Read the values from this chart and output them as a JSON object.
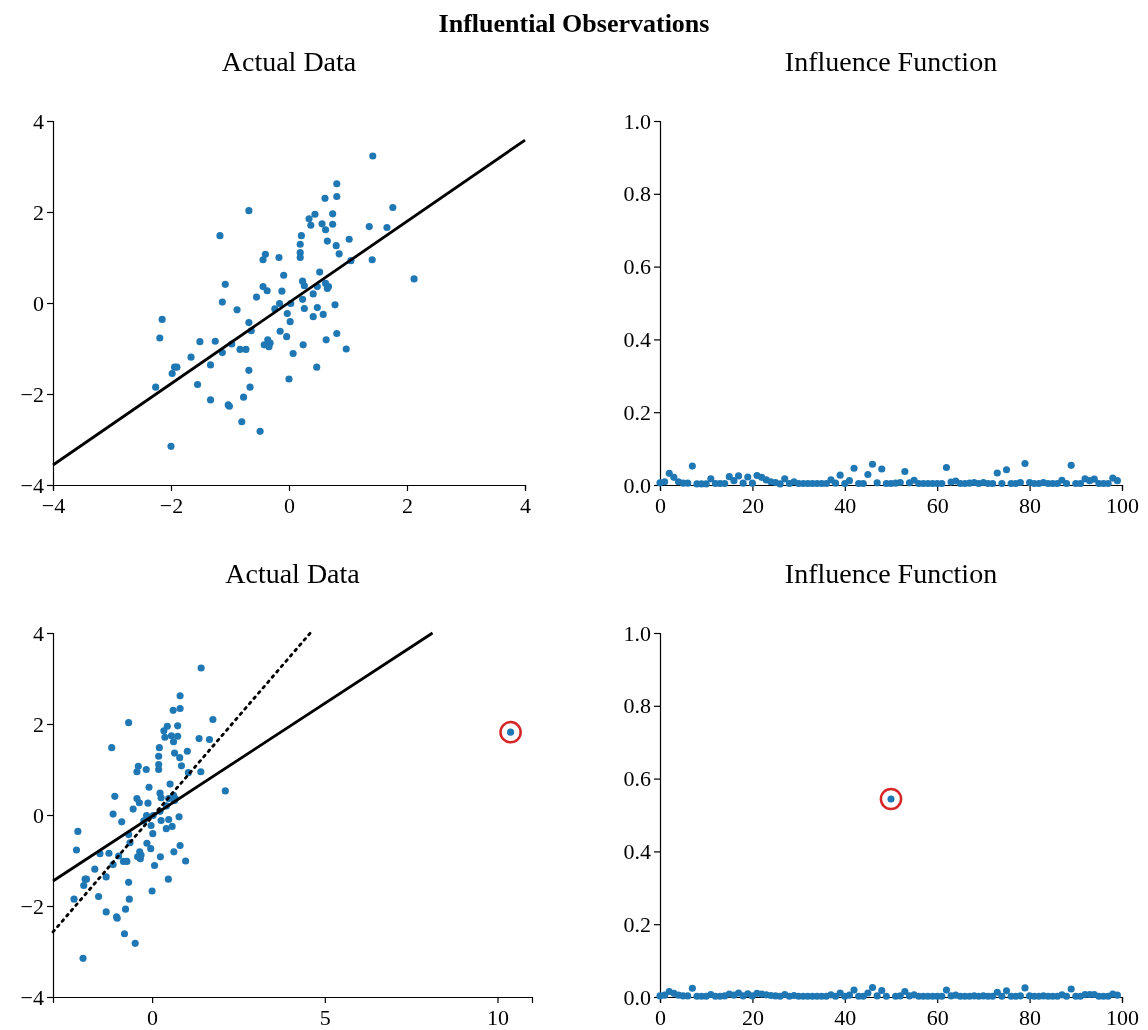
{
  "chart_data": [
    {
      "type": "scatter",
      "title": "Influential Observations",
      "subtitle": "Actual Data",
      "marker": "circle",
      "grid": false,
      "xlim": [
        -4,
        4
      ],
      "xticks": [
        {
          "value": -4,
          "label": "−4"
        },
        {
          "value": -2,
          "label": "−2"
        },
        0,
        2,
        4
      ],
      "ylim": [
        -4,
        4
      ],
      "yticks": [
        {
          "value": -4,
          "label": "−4"
        },
        {
          "value": -2,
          "label": "−2"
        },
        0,
        2,
        4
      ],
      "series": [
        {
          "color": "#1f77b4",
          "x": [
            1.42,
            0.81,
            0.61,
            0.81,
            -0.68,
            1.76,
            0.44,
            0.34,
            0.74,
            0.56,
            0.74,
            0.37,
            0.62,
            1.36,
            1.66,
            -1.17,
            0.21,
            1.02,
            0.65,
            0.19,
            0.8,
            0.85,
            -0.4,
            -0.44,
            0.19,
            0.19,
            -0.17,
            1.05,
            1.41,
            2.12,
            -0.09,
            0.52,
            -1.08,
            -0.44,
            -0.37,
            -0.12,
            0.23,
            0.26,
            0.48,
            0.62,
            0.67,
            0.65,
            0.41,
            -0.55,
            -1.13,
            0.23,
            0.03,
            -0.16,
            -0.88,
            -0.24,
            0.26,
            0.48,
            0.78,
            -0.03,
            0.41,
            0.58,
            0.02,
            -0.68,
            -2.15,
            -0.64,
            -0.15,
            -0.04,
            -2.19,
            -1.51,
            -1.25,
            -0.97,
            -0.36,
            -0.32,
            -0.42,
            -0.34,
            -0.83,
            -0.73,
            -1.13,
            0.24,
            0.63,
            0.81,
            0.97,
            0.07,
            -1.66,
            -1.33,
            -1.94,
            -1.9,
            -1.98,
            -0.68,
            0.47,
            -2.26,
            -1.55,
            -0.66,
            0.0,
            -0.77,
            -1.33,
            -1.03,
            -1.01,
            -0.8,
            -0.49,
            -2.0
          ],
          "values": [
            3.23,
            2.62,
            2.3,
            2.34,
            2.03,
            2.1,
            1.95,
            1.85,
            1.96,
            1.74,
            1.73,
            1.71,
            1.61,
            1.68,
            1.66,
            1.48,
            1.48,
            1.4,
            1.36,
            1.29,
            1.26,
            1.08,
            1.07,
            0.95,
            1.11,
            1.0,
            1.0,
            0.93,
            0.95,
            0.53,
            0.61,
            0.68,
            0.41,
            0.36,
            0.27,
            0.26,
            0.48,
            0.38,
            0.36,
            0.43,
            0.36,
            0.32,
            0.2,
            0.13,
            0.02,
            0.08,
            -0.01,
            -0.01,
            -0.15,
            -0.13,
            -0.12,
            -0.1,
            -0.04,
            -0.23,
            -0.3,
            -0.25,
            -0.41,
            -0.43,
            -0.36,
            -0.61,
            -0.62,
            -0.74,
            -0.77,
            -0.85,
            -0.84,
            -0.9,
            -0.81,
            -0.88,
            -0.92,
            -0.96,
            -1.02,
            -1.02,
            -1.09,
            -0.92,
            -0.81,
            -0.67,
            -1.01,
            -1.11,
            -1.19,
            -1.36,
            -1.41,
            -1.41,
            -1.55,
            -1.48,
            -1.41,
            -1.85,
            -1.79,
            -1.85,
            -1.67,
            -2.07,
            -2.13,
            -2.24,
            -2.27,
            -2.61,
            -2.82,
            -3.15
          ]
        },
        {
          "type": "line",
          "color": "#000000",
          "line_style": "solid",
          "marker": "none",
          "x": [
            -4,
            4
          ],
          "values": [
            -3.56,
            3.58
          ]
        }
      ]
    },
    {
      "type": "scatter",
      "subtitle": "Influence Function",
      "marker": "circle",
      "grid": false,
      "xlim": [
        0,
        100
      ],
      "xticks": [
        0,
        20,
        40,
        60,
        80,
        100
      ],
      "ylim": [
        0,
        1
      ],
      "yticks": [
        {
          "value": 0,
          "label": "0.0"
        },
        {
          "value": 0.2,
          "label": "0.2"
        },
        {
          "value": 0.4,
          "label": "0.4"
        },
        {
          "value": 0.6,
          "label": "0.6"
        },
        {
          "value": 0.8,
          "label": "0.8"
        },
        {
          "value": 1,
          "label": "1.0"
        }
      ],
      "series": [
        {
          "color": "#1f77b4",
          "x": [
            0,
            1,
            2,
            3,
            4,
            5,
            6,
            7,
            8,
            9,
            10,
            11,
            12,
            13,
            14,
            15,
            16,
            17,
            18,
            19,
            20,
            21,
            22,
            23,
            24,
            25,
            26,
            27,
            28,
            29,
            30,
            31,
            32,
            33,
            34,
            35,
            36,
            37,
            38,
            39,
            40,
            41,
            42,
            43,
            44,
            45,
            46,
            47,
            48,
            49,
            50,
            51,
            52,
            53,
            54,
            55,
            56,
            57,
            58,
            59,
            60,
            61,
            62,
            63,
            64,
            65,
            66,
            67,
            68,
            69,
            70,
            71,
            72,
            73,
            74,
            75,
            76,
            77,
            78,
            79,
            80,
            81,
            82,
            83,
            84,
            85,
            86,
            87,
            88,
            89,
            90,
            91,
            92,
            93,
            94,
            95,
            96,
            97,
            98,
            99
          ],
          "values": [
            0.006,
            0.009,
            0.032,
            0.021,
            0.009,
            0.005,
            0.005,
            0.052,
            0.003,
            0.003,
            0.003,
            0.017,
            0.004,
            0.004,
            0.004,
            0.023,
            0.012,
            0.025,
            0.005,
            0.022,
            0.005,
            0.026,
            0.021,
            0.014,
            0.009,
            0.007,
            0.003,
            0.017,
            0.004,
            0.009,
            0.004,
            0.004,
            0.004,
            0.004,
            0.004,
            0.004,
            0.004,
            0.014,
            0.005,
            0.027,
            0.004,
            0.012,
            0.046,
            0.004,
            0.004,
            0.029,
            0.057,
            0.006,
            0.044,
            0.004,
            0.004,
            0.005,
            0.007,
            0.037,
            0.006,
            0.013,
            0.004,
            0.004,
            0.004,
            0.004,
            0.004,
            0.004,
            0.048,
            0.008,
            0.011,
            0.004,
            0.004,
            0.005,
            0.007,
            0.004,
            0.007,
            0.004,
            0.004,
            0.033,
            0.004,
            0.042,
            0.004,
            0.004,
            0.007,
            0.059,
            0.007,
            0.004,
            0.004,
            0.007,
            0.004,
            0.004,
            0.004,
            0.013,
            0.004,
            0.054,
            0.004,
            0.004,
            0.017,
            0.012,
            0.016,
            0.004,
            0.004,
            0.004,
            0.019,
            0.012
          ]
        }
      ]
    },
    {
      "type": "scatter",
      "subtitle": "Actual Data",
      "marker": "circle",
      "grid": false,
      "xlim": [
        -2.87,
        11.0
      ],
      "xticks": [
        0,
        5,
        10
      ],
      "ylim": [
        -4,
        4
      ],
      "yticks": [
        {
          "value": -4,
          "label": "−4"
        },
        {
          "value": -2,
          "label": "−2"
        },
        0,
        2,
        4
      ],
      "series": [
        {
          "color": "#1f77b4",
          "x": [
            1.42,
            0.81,
            0.61,
            0.81,
            -0.68,
            1.76,
            0.44,
            0.34,
            0.74,
            0.56,
            0.74,
            0.37,
            0.62,
            1.36,
            1.66,
            -1.17,
            0.21,
            1.02,
            0.65,
            0.19,
            0.8,
            0.85,
            -0.4,
            -0.44,
            0.19,
            0.19,
            -0.17,
            1.05,
            1.41,
            2.12,
            -0.09,
            0.52,
            -1.08,
            -0.44,
            -0.37,
            -0.12,
            0.23,
            0.26,
            0.48,
            0.62,
            0.67,
            0.65,
            0.41,
            -0.55,
            -1.13,
            0.23,
            0.03,
            -0.16,
            -0.88,
            -0.24,
            0.26,
            0.48,
            0.78,
            -0.03,
            0.41,
            0.58,
            0.02,
            -0.68,
            -2.15,
            -0.64,
            -0.15,
            -0.04,
            -2.19,
            -1.51,
            -1.25,
            -0.97,
            -0.36,
            -0.32,
            -0.42,
            -0.34,
            -0.83,
            -0.73,
            -1.13,
            0.24,
            0.63,
            0.81,
            0.97,
            0.07,
            -1.66,
            -1.33,
            -1.94,
            -1.9,
            -1.98,
            -0.68,
            0.47,
            -2.26,
            -1.55,
            -0.66,
            0.0,
            -0.77,
            -1.33,
            -1.03,
            -1.01,
            -0.8,
            -0.49,
            -2.0,
            10.38
          ],
          "values": [
            3.23,
            2.62,
            2.3,
            2.34,
            2.03,
            2.1,
            1.95,
            1.85,
            1.96,
            1.74,
            1.73,
            1.71,
            1.61,
            1.68,
            1.66,
            1.48,
            1.48,
            1.4,
            1.36,
            1.29,
            1.26,
            1.08,
            1.07,
            0.95,
            1.11,
            1.0,
            1.0,
            0.93,
            0.95,
            0.53,
            0.61,
            0.68,
            0.41,
            0.36,
            0.27,
            0.26,
            0.48,
            0.38,
            0.36,
            0.43,
            0.36,
            0.32,
            0.2,
            0.13,
            0.02,
            0.08,
            -0.01,
            -0.01,
            -0.15,
            -0.13,
            -0.12,
            -0.1,
            -0.04,
            -0.23,
            -0.3,
            -0.25,
            -0.41,
            -0.43,
            -0.36,
            -0.61,
            -0.62,
            -0.74,
            -0.77,
            -0.85,
            -0.84,
            -0.9,
            -0.81,
            -0.88,
            -0.92,
            -0.96,
            -1.02,
            -1.02,
            -1.09,
            -0.92,
            -0.81,
            -0.67,
            -1.01,
            -1.11,
            -1.19,
            -1.36,
            -1.41,
            -1.41,
            -1.55,
            -1.48,
            -1.41,
            -1.85,
            -1.79,
            -1.85,
            -1.67,
            -2.07,
            -2.13,
            -2.24,
            -2.27,
            -2.61,
            -2.82,
            -3.15,
            1.82
          ]
        },
        {
          "type": "line",
          "color": "#000000",
          "line_style": "solid",
          "marker": "none",
          "x": [
            -2.87,
            8.12
          ],
          "values": [
            -1.45,
            4
          ]
        },
        {
          "type": "line",
          "color": "#000000",
          "line_style": "dotted",
          "marker": "none",
          "x": [
            -2.87,
            4.58
          ],
          "values": [
            -2.57,
            4
          ]
        },
        {
          "color": "#d62728",
          "marker": "circle",
          "x": [
            10.38
          ],
          "values": [
            1.82
          ]
        }
      ]
    },
    {
      "type": "scatter",
      "subtitle": "Influence Function",
      "marker": "circle",
      "grid": false,
      "xlim": [
        0,
        100
      ],
      "xticks": [
        0,
        20,
        40,
        60,
        80,
        100
      ],
      "ylim": [
        0,
        1
      ],
      "yticks": [
        {
          "value": 0,
          "label": "0.0"
        },
        {
          "value": 0.2,
          "label": "0.2"
        },
        {
          "value": 0.4,
          "label": "0.4"
        },
        {
          "value": 0.6,
          "label": "0.6"
        },
        {
          "value": 0.8,
          "label": "0.8"
        },
        {
          "value": 1,
          "label": "1.0"
        }
      ],
      "series": [
        {
          "color": "#1f77b4",
          "x": [
            0,
            1,
            2,
            3,
            4,
            5,
            6,
            7,
            8,
            9,
            10,
            11,
            12,
            13,
            14,
            15,
            16,
            17,
            18,
            19,
            20,
            21,
            22,
            23,
            24,
            25,
            26,
            27,
            28,
            29,
            30,
            31,
            32,
            33,
            34,
            35,
            36,
            37,
            38,
            39,
            40,
            41,
            42,
            43,
            44,
            45,
            46,
            47,
            48,
            49,
            50,
            51,
            52,
            53,
            54,
            55,
            56,
            57,
            58,
            59,
            60,
            61,
            62,
            63,
            64,
            65,
            66,
            67,
            68,
            69,
            70,
            71,
            72,
            73,
            74,
            75,
            76,
            77,
            78,
            79,
            80,
            81,
            82,
            83,
            84,
            85,
            86,
            87,
            88,
            89,
            90,
            91,
            92,
            93,
            94,
            95,
            96,
            97,
            98,
            99
          ],
          "values": [
            0.003,
            0.005,
            0.015,
            0.01,
            0.005,
            0.003,
            0.003,
            0.024,
            0.002,
            0.002,
            0.002,
            0.007,
            0.002,
            0.002,
            0.003,
            0.008,
            0.005,
            0.011,
            0.003,
            0.009,
            0.003,
            0.01,
            0.008,
            0.006,
            0.004,
            0.003,
            0.002,
            0.007,
            0.002,
            0.004,
            0.002,
            0.002,
            0.002,
            0.002,
            0.002,
            0.002,
            0.002,
            0.006,
            0.002,
            0.011,
            0.002,
            0.005,
            0.019,
            0.002,
            0.002,
            0.011,
            0.026,
            0.003,
            0.018,
            0.002,
            0.544,
            0.002,
            0.003,
            0.015,
            0.003,
            0.006,
            0.002,
            0.002,
            0.002,
            0.002,
            0.002,
            0.002,
            0.019,
            0.003,
            0.005,
            0.002,
            0.002,
            0.002,
            0.003,
            0.002,
            0.003,
            0.002,
            0.002,
            0.013,
            0.002,
            0.017,
            0.002,
            0.002,
            0.003,
            0.025,
            0.003,
            0.002,
            0.002,
            0.003,
            0.002,
            0.002,
            0.002,
            0.006,
            0.002,
            0.022,
            0.002,
            0.002,
            0.007,
            0.007,
            0.007,
            0.002,
            0.002,
            0.002,
            0.008,
            0.005
          ]
        },
        {
          "color": "#d62728",
          "marker": "circle",
          "x": [
            50
          ],
          "values": [
            0.544
          ]
        }
      ]
    }
  ]
}
